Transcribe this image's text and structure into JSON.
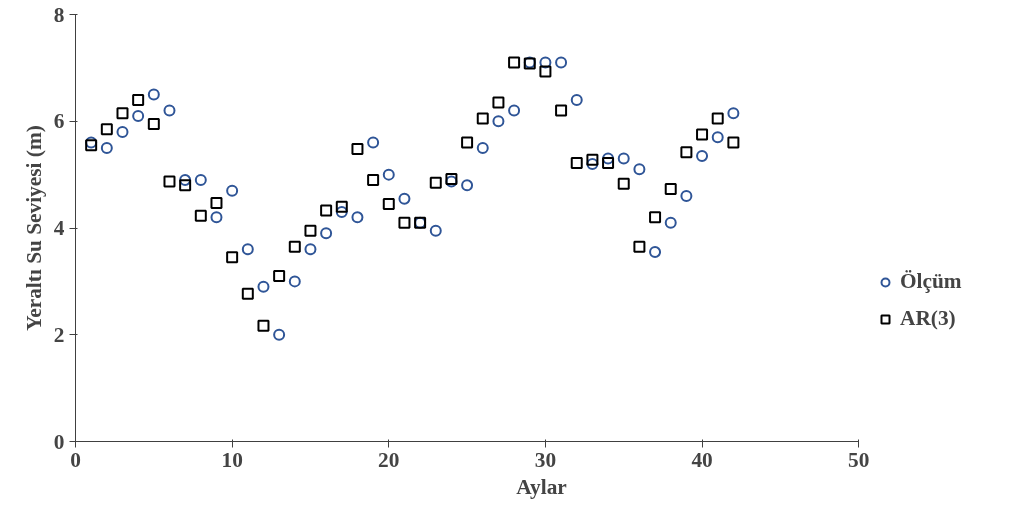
{
  "chart_data": {
    "type": "scatter",
    "xlabel": "Aylar",
    "ylabel": "Yeraltı Su Seviyesi (m)",
    "x": [
      1,
      2,
      3,
      4,
      5,
      6,
      7,
      8,
      9,
      10,
      11,
      12,
      13,
      14,
      15,
      16,
      17,
      18,
      19,
      20,
      21,
      22,
      23,
      24,
      25,
      26,
      27,
      28,
      29,
      30,
      31,
      32,
      33,
      34,
      35,
      36,
      37,
      38,
      39,
      40,
      41,
      42
    ],
    "series": [
      {
        "name": "Ölçüm",
        "color": "#2f5597",
        "marker": "circle",
        "values": [
          5.6,
          5.5,
          5.8,
          6.1,
          6.5,
          6.2,
          4.9,
          4.9,
          4.2,
          4.7,
          3.6,
          2.9,
          2.0,
          3.0,
          3.6,
          3.9,
          4.3,
          4.2,
          5.6,
          5.0,
          4.55,
          4.1,
          3.95,
          4.87,
          4.8,
          5.5,
          6.0,
          6.2,
          7.1,
          7.1,
          7.1,
          6.4,
          5.2,
          5.3,
          5.3,
          5.1,
          3.55,
          4.1,
          4.6,
          5.35,
          5.7,
          6.15
        ]
      },
      {
        "name": "AR(3)",
        "color": "#000000",
        "marker": "square",
        "values": [
          5.55,
          5.85,
          6.15,
          6.4,
          5.95,
          4.87,
          4.8,
          4.23,
          4.47,
          3.45,
          2.77,
          2.17,
          3.1,
          3.65,
          3.95,
          4.33,
          4.4,
          5.48,
          4.9,
          4.45,
          4.1,
          4.1,
          4.85,
          4.92,
          5.6,
          6.05,
          6.35,
          7.1,
          7.08,
          6.93,
          6.2,
          5.22,
          5.28,
          5.22,
          4.83,
          3.65,
          4.2,
          4.73,
          5.42,
          5.75,
          6.05,
          5.6
        ]
      }
    ],
    "xlim": [
      0,
      50
    ],
    "xticks": [
      0,
      10,
      20,
      30,
      40,
      50
    ],
    "ylim": [
      0,
      8
    ],
    "yticks": [
      0,
      2,
      4,
      6,
      8
    ],
    "grid": false,
    "legend": "right"
  }
}
